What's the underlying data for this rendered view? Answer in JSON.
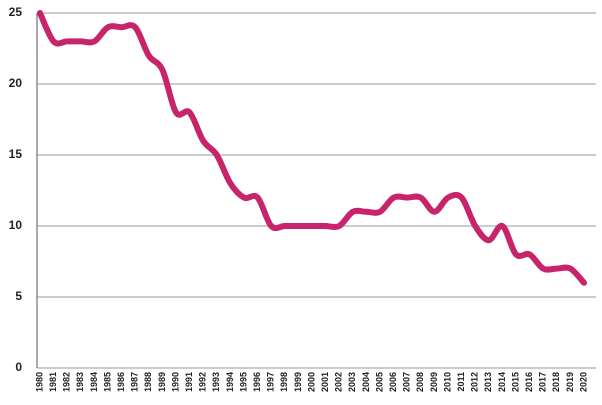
{
  "chart_data": {
    "type": "line",
    "categories": [
      "1980",
      "1981",
      "1982",
      "1983",
      "1984",
      "1985",
      "1986",
      "1987",
      "1988",
      "1989",
      "1990",
      "1991",
      "1992",
      "1993",
      "1994",
      "1995",
      "1996",
      "1997",
      "1998",
      "1999",
      "2000",
      "2001",
      "2002",
      "2003",
      "2004",
      "2005",
      "2006",
      "2007",
      "2008",
      "2009",
      "2010",
      "2011",
      "2012",
      "2013",
      "2014",
      "2015",
      "2016",
      "2017",
      "2018",
      "2019",
      "2020"
    ],
    "values": [
      25,
      23,
      23,
      23,
      23,
      24,
      24,
      24,
      22,
      21,
      18,
      18,
      16,
      15,
      13,
      12,
      12,
      10,
      10,
      10,
      10,
      10,
      10,
      11,
      11,
      11,
      12,
      12,
      12,
      11,
      12,
      12,
      10,
      9,
      10,
      8,
      8,
      7,
      7,
      7,
      6
    ],
    "color": "#c8246c",
    "smooth": true,
    "ylim": [
      0,
      25
    ],
    "yticks": [
      0,
      5,
      10,
      15,
      20,
      25
    ],
    "grid": true
  }
}
